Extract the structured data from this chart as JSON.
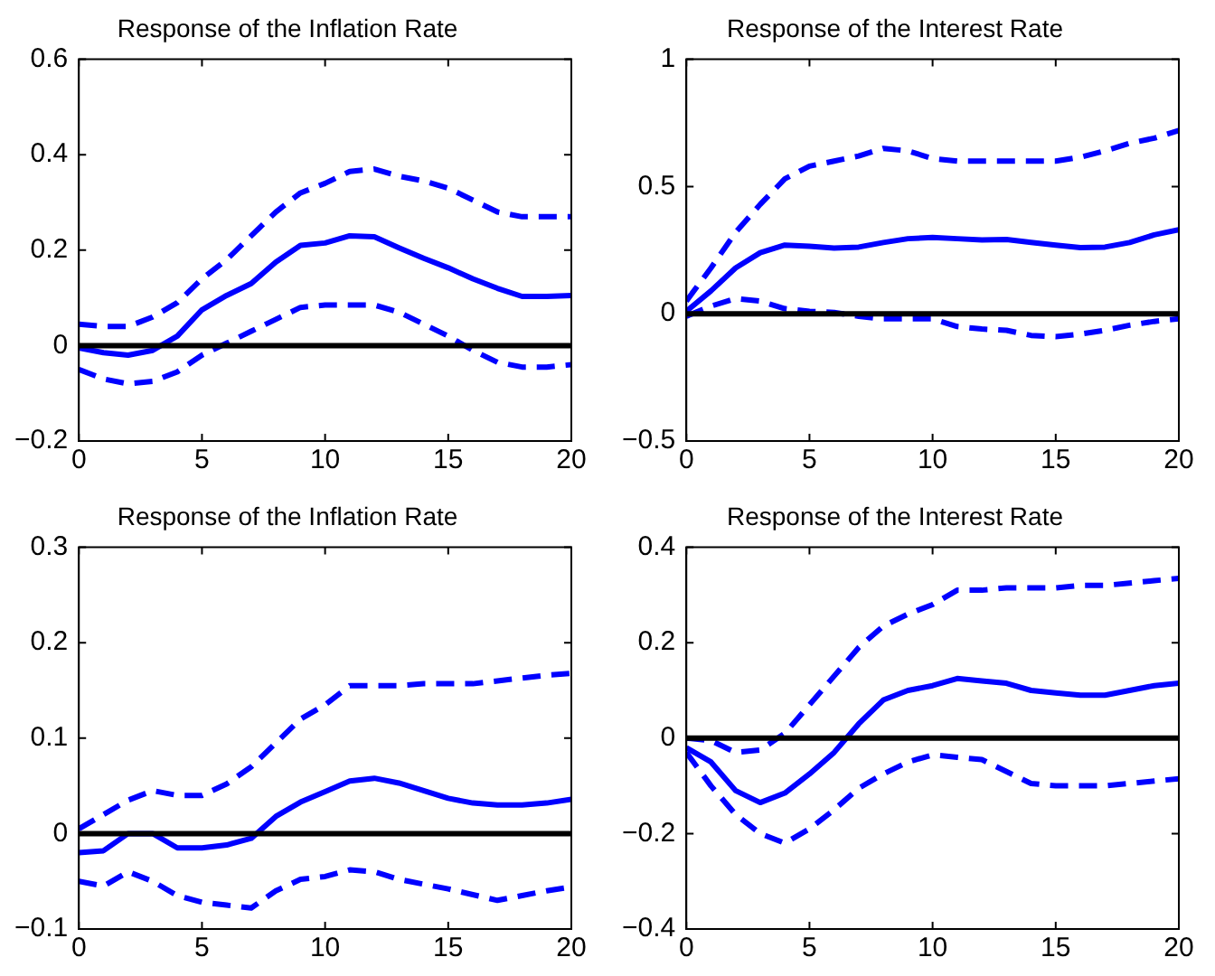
{
  "chart_data": [
    {
      "type": "line",
      "title": "Response of the Inflation Rate",
      "x": [
        0,
        1,
        2,
        3,
        4,
        5,
        6,
        7,
        8,
        9,
        10,
        11,
        12,
        13,
        14,
        15,
        16,
        17,
        18,
        19,
        20
      ],
      "xlim": [
        0,
        20
      ],
      "xticks": [
        0,
        5,
        10,
        15,
        20
      ],
      "ylim": [
        -0.2,
        0.6
      ],
      "yticks": [
        -0.2,
        0,
        0.2,
        0.4,
        0.6
      ],
      "grid": false,
      "legend": false,
      "marker": "none",
      "ref_lines": [
        {
          "axis": "y",
          "value": 0,
          "color": "#000000"
        }
      ],
      "series": [
        {
          "color": "#0000ff",
          "line_style": "solid",
          "values": [
            -0.005,
            -0.015,
            -0.02,
            -0.01,
            0.02,
            0.075,
            0.105,
            0.13,
            0.175,
            0.21,
            0.215,
            0.23,
            0.228,
            0.205,
            0.183,
            0.163,
            0.14,
            0.12,
            0.103,
            0.103,
            0.105
          ]
        },
        {
          "color": "#0000ff",
          "line_style": "dashed",
          "values": [
            0.045,
            0.04,
            0.04,
            0.06,
            0.09,
            0.14,
            0.18,
            0.23,
            0.28,
            0.32,
            0.34,
            0.365,
            0.37,
            0.355,
            0.345,
            0.33,
            0.305,
            0.28,
            0.27,
            0.27,
            0.27
          ]
        },
        {
          "color": "#0000ff",
          "line_style": "dashed",
          "values": [
            -0.05,
            -0.07,
            -0.08,
            -0.075,
            -0.055,
            -0.02,
            0.005,
            0.03,
            0.055,
            0.08,
            0.085,
            0.085,
            0.085,
            0.07,
            0.045,
            0.02,
            -0.01,
            -0.035,
            -0.045,
            -0.045,
            -0.04
          ]
        }
      ]
    },
    {
      "type": "line",
      "title": "Response of the Interest Rate",
      "x": [
        0,
        1,
        2,
        3,
        4,
        5,
        6,
        7,
        8,
        9,
        10,
        11,
        12,
        13,
        14,
        15,
        16,
        17,
        18,
        19,
        20
      ],
      "xlim": [
        0,
        20
      ],
      "xticks": [
        0,
        5,
        10,
        15,
        20
      ],
      "ylim": [
        -0.5,
        1
      ],
      "yticks": [
        -0.5,
        0,
        0.5,
        1
      ],
      "grid": false,
      "legend": false,
      "marker": "none",
      "ref_lines": [
        {
          "axis": "y",
          "value": 0,
          "color": "#000000"
        }
      ],
      "series": [
        {
          "color": "#0000ff",
          "line_style": "solid",
          "values": [
            0.01,
            0.09,
            0.18,
            0.24,
            0.27,
            0.265,
            0.258,
            0.262,
            0.28,
            0.295,
            0.3,
            0.295,
            0.29,
            0.292,
            0.28,
            0.27,
            0.26,
            0.262,
            0.28,
            0.31,
            0.33
          ]
        },
        {
          "color": "#0000ff",
          "line_style": "dashed",
          "values": [
            0.05,
            0.18,
            0.32,
            0.43,
            0.53,
            0.58,
            0.6,
            0.62,
            0.65,
            0.64,
            0.61,
            0.6,
            0.6,
            0.6,
            0.6,
            0.6,
            0.615,
            0.64,
            0.67,
            0.69,
            0.72
          ]
        },
        {
          "color": "#0000ff",
          "line_style": "dashed",
          "values": [
            -0.01,
            0.03,
            0.06,
            0.05,
            0.02,
            0.01,
            0.005,
            -0.01,
            -0.02,
            -0.02,
            -0.02,
            -0.05,
            -0.06,
            -0.065,
            -0.085,
            -0.09,
            -0.08,
            -0.065,
            -0.045,
            -0.03,
            -0.02
          ]
        }
      ]
    },
    {
      "type": "line",
      "title": "Response of the Inflation Rate",
      "x": [
        0,
        1,
        2,
        3,
        4,
        5,
        6,
        7,
        8,
        9,
        10,
        11,
        12,
        13,
        14,
        15,
        16,
        17,
        18,
        19,
        20
      ],
      "xlim": [
        0,
        20
      ],
      "xticks": [
        0,
        5,
        10,
        15,
        20
      ],
      "ylim": [
        -0.1,
        0.3
      ],
      "yticks": [
        -0.1,
        0,
        0.1,
        0.2,
        0.3
      ],
      "grid": false,
      "legend": false,
      "marker": "none",
      "ref_lines": [
        {
          "axis": "y",
          "value": 0,
          "color": "#000000"
        }
      ],
      "series": [
        {
          "color": "#0000ff",
          "line_style": "solid",
          "values": [
            -0.02,
            -0.018,
            0.0,
            0.0,
            -0.015,
            -0.015,
            -0.012,
            -0.005,
            0.018,
            0.033,
            0.044,
            0.055,
            0.058,
            0.053,
            0.045,
            0.037,
            0.032,
            0.03,
            0.03,
            0.032,
            0.036
          ]
        },
        {
          "color": "#0000ff",
          "line_style": "dashed",
          "values": [
            0.005,
            0.02,
            0.035,
            0.045,
            0.04,
            0.04,
            0.052,
            0.07,
            0.095,
            0.12,
            0.135,
            0.155,
            0.155,
            0.155,
            0.157,
            0.157,
            0.157,
            0.16,
            0.163,
            0.166,
            0.168
          ]
        },
        {
          "color": "#0000ff",
          "line_style": "dashed",
          "values": [
            -0.05,
            -0.055,
            -0.04,
            -0.05,
            -0.065,
            -0.072,
            -0.075,
            -0.078,
            -0.06,
            -0.048,
            -0.045,
            -0.038,
            -0.04,
            -0.048,
            -0.053,
            -0.058,
            -0.064,
            -0.07,
            -0.065,
            -0.06,
            -0.056
          ]
        }
      ]
    },
    {
      "type": "line",
      "title": "Response of the Interest Rate",
      "x": [
        0,
        1,
        2,
        3,
        4,
        5,
        6,
        7,
        8,
        9,
        10,
        11,
        12,
        13,
        14,
        15,
        16,
        17,
        18,
        19,
        20
      ],
      "xlim": [
        0,
        20
      ],
      "xticks": [
        0,
        5,
        10,
        15,
        20
      ],
      "ylim": [
        -0.4,
        0.4
      ],
      "yticks": [
        -0.4,
        -0.2,
        0,
        0.2,
        0.4
      ],
      "grid": false,
      "legend": false,
      "marker": "none",
      "ref_lines": [
        {
          "axis": "y",
          "value": 0,
          "color": "#000000"
        }
      ],
      "series": [
        {
          "color": "#0000ff",
          "line_style": "solid",
          "values": [
            -0.02,
            -0.05,
            -0.11,
            -0.135,
            -0.115,
            -0.075,
            -0.03,
            0.03,
            0.08,
            0.1,
            0.11,
            0.125,
            0.12,
            0.115,
            0.1,
            0.095,
            0.09,
            0.09,
            0.1,
            0.11,
            0.115
          ]
        },
        {
          "color": "#0000ff",
          "line_style": "dashed",
          "values": [
            0.0,
            -0.005,
            -0.03,
            -0.025,
            0.01,
            0.07,
            0.13,
            0.19,
            0.235,
            0.26,
            0.28,
            0.31,
            0.31,
            0.315,
            0.315,
            0.315,
            0.32,
            0.32,
            0.325,
            0.33,
            0.335
          ]
        },
        {
          "color": "#0000ff",
          "line_style": "dashed",
          "values": [
            -0.03,
            -0.1,
            -0.16,
            -0.2,
            -0.22,
            -0.19,
            -0.15,
            -0.105,
            -0.075,
            -0.05,
            -0.035,
            -0.04,
            -0.045,
            -0.07,
            -0.095,
            -0.1,
            -0.1,
            -0.1,
            -0.095,
            -0.09,
            -0.085
          ]
        }
      ]
    }
  ]
}
